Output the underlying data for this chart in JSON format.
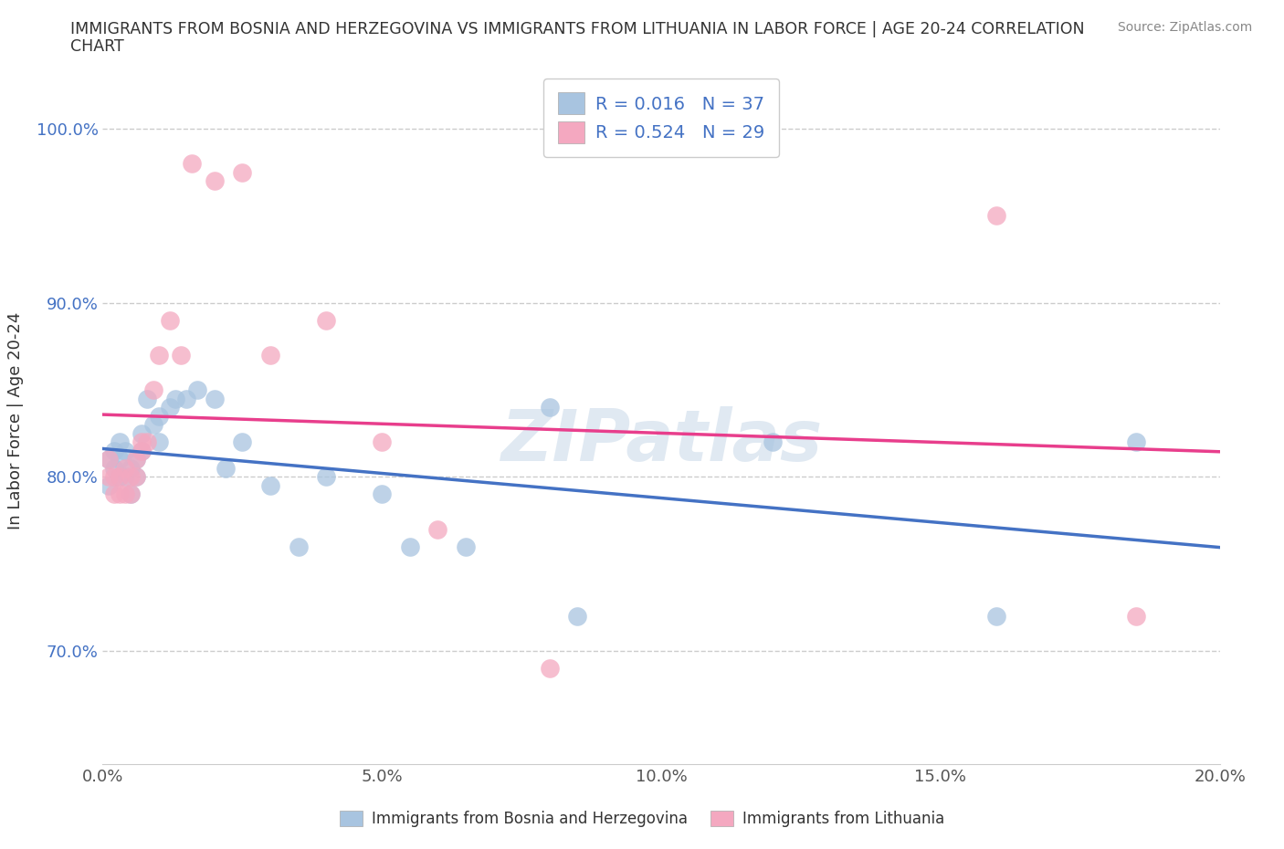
{
  "title_line1": "IMMIGRANTS FROM BOSNIA AND HERZEGOVINA VS IMMIGRANTS FROM LITHUANIA IN LABOR FORCE | AGE 20-24 CORRELATION",
  "title_line2": "CHART",
  "source": "Source: ZipAtlas.com",
  "ylabel": "In Labor Force | Age 20-24",
  "xlim": [
    0.0,
    0.2
  ],
  "ylim": [
    0.635,
    1.03
  ],
  "yticks": [
    0.7,
    0.8,
    0.9,
    1.0
  ],
  "ytick_labels": [
    "70.0%",
    "80.0%",
    "90.0%",
    "100.0%"
  ],
  "xticks": [
    0.0,
    0.05,
    0.1,
    0.15,
    0.2
  ],
  "xtick_labels": [
    "0.0%",
    "5.0%",
    "10.0%",
    "15.0%",
    "20.0%"
  ],
  "bosnia_x": [
    0.001,
    0.001,
    0.002,
    0.002,
    0.003,
    0.003,
    0.003,
    0.004,
    0.004,
    0.005,
    0.005,
    0.006,
    0.006,
    0.007,
    0.007,
    0.008,
    0.009,
    0.01,
    0.01,
    0.012,
    0.013,
    0.015,
    0.017,
    0.02,
    0.022,
    0.025,
    0.03,
    0.035,
    0.04,
    0.05,
    0.055,
    0.065,
    0.08,
    0.085,
    0.12,
    0.16,
    0.185
  ],
  "bosnia_y": [
    0.81,
    0.795,
    0.805,
    0.815,
    0.8,
    0.81,
    0.82,
    0.8,
    0.815,
    0.79,
    0.805,
    0.8,
    0.81,
    0.815,
    0.825,
    0.845,
    0.83,
    0.835,
    0.82,
    0.84,
    0.845,
    0.845,
    0.85,
    0.845,
    0.805,
    0.82,
    0.795,
    0.76,
    0.8,
    0.79,
    0.76,
    0.76,
    0.84,
    0.72,
    0.82,
    0.72,
    0.82
  ],
  "lithuania_x": [
    0.001,
    0.001,
    0.002,
    0.002,
    0.003,
    0.003,
    0.004,
    0.004,
    0.005,
    0.005,
    0.006,
    0.006,
    0.007,
    0.007,
    0.008,
    0.009,
    0.01,
    0.012,
    0.014,
    0.016,
    0.02,
    0.025,
    0.03,
    0.04,
    0.05,
    0.06,
    0.08,
    0.16,
    0.185
  ],
  "lithuania_y": [
    0.8,
    0.81,
    0.79,
    0.8,
    0.79,
    0.8,
    0.79,
    0.805,
    0.79,
    0.8,
    0.8,
    0.81,
    0.815,
    0.82,
    0.82,
    0.85,
    0.87,
    0.89,
    0.87,
    0.98,
    0.97,
    0.975,
    0.87,
    0.89,
    0.82,
    0.77,
    0.69,
    0.95,
    0.72
  ],
  "bosnia_color": "#a8c4e0",
  "lithuania_color": "#f4a8c0",
  "bosnia_line_color": "#4472c4",
  "lithuania_line_color": "#e83e8c",
  "bosnia_R": 0.016,
  "bosnia_N": 37,
  "lithuania_R": 0.524,
  "lithuania_N": 29,
  "watermark": "ZIPatlas",
  "legend_label_bosnia": "Immigrants from Bosnia and Herzegovina",
  "legend_label_lithuania": "Immigrants from Lithuania",
  "background_color": "#ffffff",
  "grid_color": "#cccccc"
}
